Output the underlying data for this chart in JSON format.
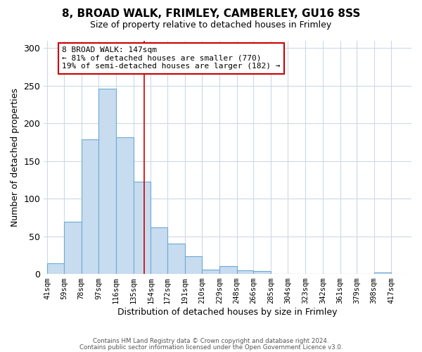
{
  "title": "8, BROAD WALK, FRIMLEY, CAMBERLEY, GU16 8SS",
  "subtitle": "Size of property relative to detached houses in Frimley",
  "xlabel": "Distribution of detached houses by size in Frimley",
  "ylabel": "Number of detached properties",
  "bar_values": [
    14,
    69,
    179,
    246,
    181,
    123,
    62,
    40,
    23,
    6,
    10,
    5,
    4,
    0,
    0,
    0,
    0,
    0,
    0,
    2
  ],
  "tick_labels": [
    "41sqm",
    "59sqm",
    "78sqm",
    "97sqm",
    "116sqm",
    "135sqm",
    "154sqm",
    "172sqm",
    "191sqm",
    "210sqm",
    "229sqm",
    "248sqm",
    "266sqm",
    "285sqm",
    "304sqm",
    "323sqm",
    "342sqm",
    "361sqm",
    "379sqm",
    "398sqm",
    "417sqm"
  ],
  "tick_positions": [
    41,
    59,
    78,
    97,
    116,
    135,
    154,
    172,
    191,
    210,
    229,
    248,
    266,
    285,
    304,
    323,
    342,
    361,
    379,
    398,
    417
  ],
  "bar_color": "#c8dcef",
  "bar_edge_color": "#6aaad4",
  "ylim": [
    0,
    310
  ],
  "yticks": [
    0,
    50,
    100,
    150,
    200,
    250,
    300
  ],
  "annotation_text_line1": "8 BROAD WALK: 147sqm",
  "annotation_text_line2": "← 81% of detached houses are smaller (770)",
  "annotation_text_line3": "19% of semi-detached houses are larger (182) →",
  "annotation_box_color": "#cc0000",
  "vline_x": 147,
  "footer_line1": "Contains HM Land Registry data © Crown copyright and database right 2024.",
  "footer_line2": "Contains public sector information licensed under the Open Government Licence v3.0.",
  "background_color": "#ffffff",
  "grid_color": "#ccd9e8"
}
